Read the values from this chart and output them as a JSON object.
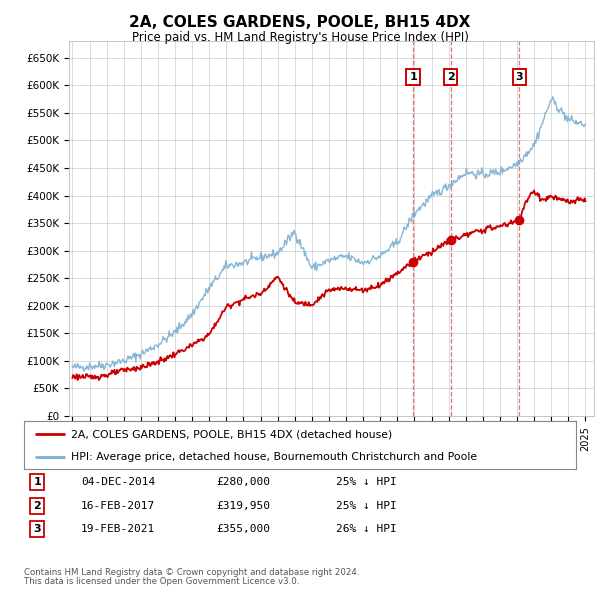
{
  "title": "2A, COLES GARDENS, POOLE, BH15 4DX",
  "subtitle": "Price paid vs. HM Land Registry's House Price Index (HPI)",
  "legend_line1": "2A, COLES GARDENS, POOLE, BH15 4DX (detached house)",
  "legend_line2": "HPI: Average price, detached house, Bournemouth Christchurch and Poole",
  "footer_line1": "Contains HM Land Registry data © Crown copyright and database right 2024.",
  "footer_line2": "This data is licensed under the Open Government Licence v3.0.",
  "sale_color": "#cc0000",
  "hpi_color": "#7ab0d4",
  "background_color": "#ffffff",
  "plot_bg_color": "#ffffff",
  "grid_color": "#cccccc",
  "vline_color": "#dd4444",
  "marker_color": "#cc0000",
  "sale_years": [
    2014.92,
    2017.12,
    2021.13
  ],
  "sale_prices": [
    280000,
    319950,
    355000
  ],
  "sale_labels": [
    "1",
    "2",
    "3"
  ],
  "ylim": [
    0,
    680000
  ],
  "yticks": [
    0,
    50000,
    100000,
    150000,
    200000,
    250000,
    300000,
    350000,
    400000,
    450000,
    500000,
    550000,
    600000,
    650000
  ],
  "ytick_labels": [
    "£0",
    "£50K",
    "£100K",
    "£150K",
    "£200K",
    "£250K",
    "£300K",
    "£350K",
    "£400K",
    "£450K",
    "£500K",
    "£550K",
    "£600K",
    "£650K"
  ],
  "xlim_start": 1994.8,
  "xlim_end": 2025.5,
  "xticks": [
    1995,
    1996,
    1997,
    1998,
    1999,
    2000,
    2001,
    2002,
    2003,
    2004,
    2005,
    2006,
    2007,
    2008,
    2009,
    2010,
    2011,
    2012,
    2013,
    2014,
    2015,
    2016,
    2017,
    2018,
    2019,
    2020,
    2021,
    2022,
    2023,
    2024,
    2025
  ],
  "table_data": [
    [
      "1",
      "04-DEC-2014",
      "£280,000",
      "25% ↓ HPI"
    ],
    [
      "2",
      "16-FEB-2017",
      "£319,950",
      "25% ↓ HPI"
    ],
    [
      "3",
      "19-FEB-2021",
      "£355,000",
      "26% ↓ HPI"
    ]
  ]
}
